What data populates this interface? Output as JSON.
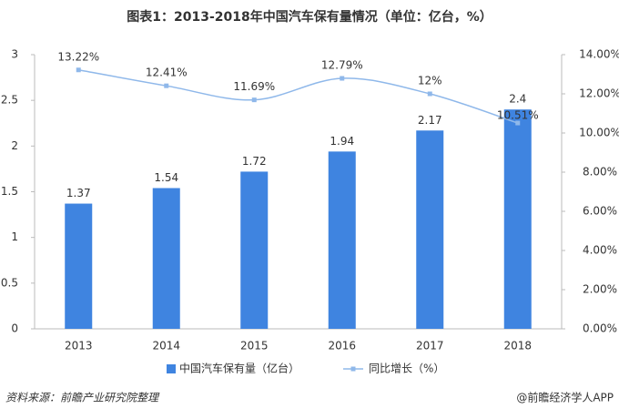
{
  "chart_data": {
    "type": "bar-line",
    "title": "图表1：2013-2018年中国汽车保有量情况（单位：亿台，%）",
    "categories": [
      "2013",
      "2014",
      "2015",
      "2016",
      "2017",
      "2018"
    ],
    "series": [
      {
        "name": "中国汽车保有量（亿台）",
        "type": "bar",
        "color": "#3f84e0",
        "values": [
          1.37,
          1.54,
          1.72,
          1.94,
          2.17,
          2.4
        ]
      },
      {
        "name": "同比增长（%）",
        "type": "line",
        "axis": "y2",
        "color": "#8fb8ea",
        "values": [
          13.22,
          12.41,
          11.69,
          12.79,
          12,
          10.51
        ],
        "value_labels": [
          "13.22%",
          "12.41%",
          "11.69%",
          "12.79%",
          "12%",
          "10.51%"
        ]
      }
    ],
    "ylim": [
      0,
      3
    ],
    "yticks": [
      0,
      0.5,
      1,
      1.5,
      2,
      2.5,
      3
    ],
    "y2lim": [
      0,
      14
    ],
    "y2ticks": [
      {
        "value": 0,
        "label": "0.00%"
      },
      {
        "value": 2,
        "label": "2.00%"
      },
      {
        "value": 4,
        "label": "4.00%"
      },
      {
        "value": 6,
        "label": "6.00%"
      },
      {
        "value": 8,
        "label": "8.00%"
      },
      {
        "value": 10,
        "label": "10.00%"
      },
      {
        "value": 12,
        "label": "12.00%"
      },
      {
        "value": 14,
        "label": "14.00%"
      }
    ],
    "source": "资料来源：前瞻产业研究院整理",
    "credit": "@前瞻经济学人APP"
  }
}
